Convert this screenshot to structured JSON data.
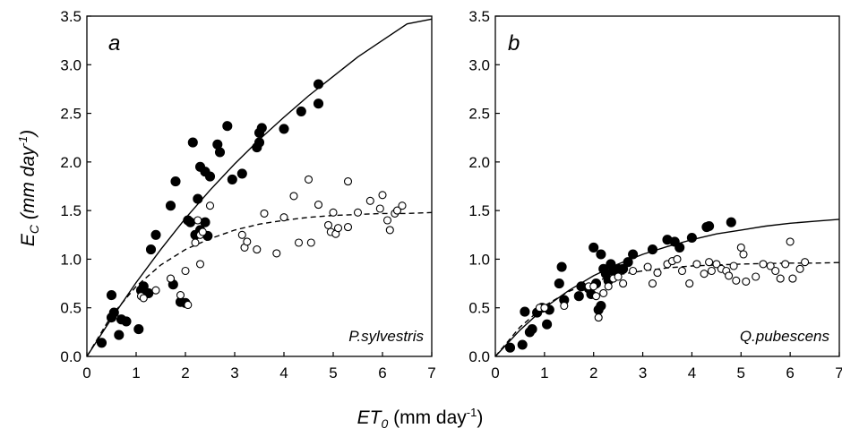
{
  "ylabel": {
    "main": "E",
    "sub": "C",
    "unit_pre": " (mm day",
    "unit_sup": "-1",
    "unit_post": ")"
  },
  "xlabel": {
    "main": "ET",
    "sub": "0",
    "unit_pre": " (mm day",
    "unit_sup": "-1",
    "unit_post": ")"
  },
  "chart_data": [
    {
      "type": "scatter",
      "panel_letter": "a",
      "species": "P.sylvestris",
      "xlim": [
        0,
        7
      ],
      "ylim": [
        0,
        3.5
      ],
      "x_ticks": [
        "0",
        "1",
        "2",
        "3",
        "4",
        "5",
        "6",
        "7"
      ],
      "y_ticks": [
        "0.0",
        "0.5",
        "1.0",
        "1.5",
        "2.0",
        "2.5",
        "3.0",
        "3.5"
      ],
      "series": [
        {
          "marker": "filled-circle",
          "points": [
            [
              0.3,
              0.14
            ],
            [
              0.5,
              0.63
            ],
            [
              0.5,
              0.4
            ],
            [
              0.55,
              0.45
            ],
            [
              0.65,
              0.22
            ],
            [
              0.7,
              0.38
            ],
            [
              0.8,
              0.36
            ],
            [
              1.05,
              0.28
            ],
            [
              1.1,
              0.68
            ],
            [
              1.15,
              0.72
            ],
            [
              1.25,
              0.65
            ],
            [
              1.3,
              1.1
            ],
            [
              1.4,
              1.25
            ],
            [
              1.7,
              1.55
            ],
            [
              1.75,
              0.74
            ],
            [
              1.8,
              1.8
            ],
            [
              1.9,
              0.56
            ],
            [
              2.0,
              0.55
            ],
            [
              2.05,
              1.4
            ],
            [
              2.1,
              1.38
            ],
            [
              2.15,
              2.2
            ],
            [
              2.2,
              1.25
            ],
            [
              2.25,
              1.62
            ],
            [
              2.3,
              1.95
            ],
            [
              2.3,
              1.3
            ],
            [
              2.4,
              1.38
            ],
            [
              2.4,
              1.9
            ],
            [
              2.45,
              1.24
            ],
            [
              2.5,
              1.85
            ],
            [
              2.65,
              2.18
            ],
            [
              2.7,
              2.1
            ],
            [
              2.85,
              2.37
            ],
            [
              2.95,
              1.82
            ],
            [
              3.15,
              1.88
            ],
            [
              3.45,
              2.15
            ],
            [
              3.5,
              2.3
            ],
            [
              3.5,
              2.2
            ],
            [
              3.55,
              2.35
            ],
            [
              4.0,
              2.34
            ],
            [
              4.35,
              2.52
            ],
            [
              4.7,
              2.6
            ],
            [
              4.7,
              2.8
            ]
          ]
        },
        {
          "marker": "open-circle",
          "points": [
            [
              1.1,
              0.62
            ],
            [
              1.15,
              0.6
            ],
            [
              1.4,
              0.68
            ],
            [
              1.7,
              0.8
            ],
            [
              1.9,
              0.63
            ],
            [
              2.0,
              0.88
            ],
            [
              2.05,
              0.53
            ],
            [
              2.2,
              1.17
            ],
            [
              2.25,
              1.4
            ],
            [
              2.3,
              1.25
            ],
            [
              2.3,
              0.95
            ],
            [
              2.5,
              1.55
            ],
            [
              2.35,
              1.28
            ],
            [
              3.15,
              1.25
            ],
            [
              3.2,
              1.12
            ],
            [
              3.25,
              1.18
            ],
            [
              3.45,
              1.1
            ],
            [
              3.6,
              1.47
            ],
            [
              3.85,
              1.06
            ],
            [
              4.0,
              1.43
            ],
            [
              4.2,
              1.65
            ],
            [
              4.3,
              1.17
            ],
            [
              4.5,
              1.82
            ],
            [
              4.55,
              1.17
            ],
            [
              4.7,
              1.56
            ],
            [
              4.9,
              1.35
            ],
            [
              4.95,
              1.28
            ],
            [
              5.0,
              1.48
            ],
            [
              5.05,
              1.26
            ],
            [
              5.1,
              1.32
            ],
            [
              5.3,
              1.8
            ],
            [
              5.3,
              1.33
            ],
            [
              5.5,
              1.48
            ],
            [
              5.75,
              1.6
            ],
            [
              5.95,
              1.52
            ],
            [
              6.0,
              1.66
            ],
            [
              6.1,
              1.4
            ],
            [
              6.15,
              1.3
            ],
            [
              6.25,
              1.47
            ],
            [
              6.3,
              1.5
            ],
            [
              6.4,
              1.55
            ]
          ]
        }
      ],
      "curves": [
        {
          "style": "solid",
          "points": [
            [
              0,
              0
            ],
            [
              0.5,
              0.39
            ],
            [
              1,
              0.76
            ],
            [
              1.5,
              1.1
            ],
            [
              2,
              1.42
            ],
            [
              2.5,
              1.71
            ],
            [
              3,
              1.98
            ],
            [
              3.5,
              2.23
            ],
            [
              4,
              2.46
            ],
            [
              4.5,
              2.68
            ],
            [
              5,
              2.88
            ],
            [
              5.5,
              3.08
            ],
            [
              6,
              3.25
            ],
            [
              6.5,
              3.42
            ],
            [
              7,
              3.47
            ]
          ]
        },
        {
          "style": "dashed",
          "points": [
            [
              0,
              0
            ],
            [
              0.5,
              0.42
            ],
            [
              1,
              0.72
            ],
            [
              1.5,
              0.94
            ],
            [
              2,
              1.1
            ],
            [
              2.5,
              1.21
            ],
            [
              3,
              1.3
            ],
            [
              3.5,
              1.36
            ],
            [
              4,
              1.4
            ],
            [
              4.5,
              1.43
            ],
            [
              5,
              1.45
            ],
            [
              5.5,
              1.46
            ],
            [
              6,
              1.47
            ],
            [
              6.5,
              1.47
            ],
            [
              7,
              1.48
            ]
          ]
        }
      ]
    },
    {
      "type": "scatter",
      "panel_letter": "b",
      "species": "Q.pubescens",
      "xlim": [
        0,
        7
      ],
      "ylim": [
        0,
        3.5
      ],
      "x_ticks": [
        "0",
        "1",
        "2",
        "3",
        "4",
        "5",
        "6",
        "7"
      ],
      "y_ticks": [
        "0.0",
        "0.5",
        "1.0",
        "1.5",
        "2.0",
        "2.5",
        "3.0",
        "3.5"
      ],
      "series": [
        {
          "marker": "filled-circle",
          "points": [
            [
              0.3,
              0.09
            ],
            [
              0.55,
              0.12
            ],
            [
              0.6,
              0.46
            ],
            [
              0.7,
              0.25
            ],
            [
              0.75,
              0.28
            ],
            [
              0.85,
              0.45
            ],
            [
              0.95,
              0.5
            ],
            [
              1.05,
              0.33
            ],
            [
              1.1,
              0.48
            ],
            [
              1.3,
              0.75
            ],
            [
              1.35,
              0.92
            ],
            [
              1.4,
              0.58
            ],
            [
              1.7,
              0.62
            ],
            [
              1.75,
              0.72
            ],
            [
              1.9,
              0.7
            ],
            [
              1.95,
              0.64
            ],
            [
              2.0,
              1.12
            ],
            [
              2.05,
              0.75
            ],
            [
              2.1,
              0.48
            ],
            [
              2.15,
              0.52
            ],
            [
              2.15,
              1.05
            ],
            [
              2.2,
              0.9
            ],
            [
              2.25,
              0.85
            ],
            [
              2.3,
              0.78
            ],
            [
              2.35,
              0.95
            ],
            [
              2.4,
              0.88
            ],
            [
              2.5,
              0.9
            ],
            [
              2.6,
              0.9
            ],
            [
              2.7,
              0.97
            ],
            [
              2.8,
              1.05
            ],
            [
              3.2,
              1.1
            ],
            [
              3.5,
              1.2
            ],
            [
              3.65,
              1.18
            ],
            [
              3.75,
              1.12
            ],
            [
              4.0,
              1.22
            ],
            [
              4.3,
              1.33
            ],
            [
              4.35,
              1.34
            ],
            [
              4.8,
              1.38
            ]
          ]
        },
        {
          "marker": "open-circle",
          "points": [
            [
              0.9,
              0.5
            ],
            [
              1.0,
              0.5
            ],
            [
              1.4,
              0.52
            ],
            [
              1.9,
              0.72
            ],
            [
              2.0,
              0.72
            ],
            [
              2.05,
              0.62
            ],
            [
              2.1,
              0.4
            ],
            [
              2.2,
              0.65
            ],
            [
              2.3,
              0.72
            ],
            [
              2.4,
              0.8
            ],
            [
              2.5,
              0.82
            ],
            [
              2.6,
              0.75
            ],
            [
              2.8,
              0.88
            ],
            [
              3.1,
              0.92
            ],
            [
              3.2,
              0.75
            ],
            [
              3.3,
              0.86
            ],
            [
              3.5,
              0.95
            ],
            [
              3.6,
              0.98
            ],
            [
              3.7,
              1.0
            ],
            [
              3.8,
              0.88
            ],
            [
              3.95,
              0.75
            ],
            [
              4.1,
              0.95
            ],
            [
              4.25,
              0.85
            ],
            [
              4.35,
              0.97
            ],
            [
              4.4,
              0.88
            ],
            [
              4.5,
              0.95
            ],
            [
              4.6,
              0.9
            ],
            [
              4.7,
              0.88
            ],
            [
              4.75,
              0.83
            ],
            [
              4.85,
              0.93
            ],
            [
              4.9,
              0.78
            ],
            [
              5.0,
              1.12
            ],
            [
              5.05,
              1.05
            ],
            [
              5.1,
              0.77
            ],
            [
              5.3,
              0.82
            ],
            [
              5.45,
              0.95
            ],
            [
              5.6,
              0.93
            ],
            [
              5.7,
              0.88
            ],
            [
              5.8,
              0.8
            ],
            [
              5.9,
              0.95
            ],
            [
              6.0,
              1.18
            ],
            [
              6.05,
              0.8
            ],
            [
              6.2,
              0.9
            ],
            [
              6.3,
              0.97
            ]
          ]
        }
      ],
      "curves": [
        {
          "style": "solid",
          "points": [
            [
              0,
              0
            ],
            [
              0.5,
              0.27
            ],
            [
              1,
              0.5
            ],
            [
              1.5,
              0.68
            ],
            [
              2,
              0.83
            ],
            [
              2.5,
              0.95
            ],
            [
              3,
              1.05
            ],
            [
              3.5,
              1.13
            ],
            [
              4,
              1.2
            ],
            [
              4.5,
              1.26
            ],
            [
              5,
              1.3
            ],
            [
              5.5,
              1.34
            ],
            [
              6,
              1.37
            ],
            [
              6.5,
              1.39
            ],
            [
              7,
              1.41
            ]
          ]
        },
        {
          "style": "dashed",
          "points": [
            [
              0,
              0
            ],
            [
              0.5,
              0.3
            ],
            [
              1,
              0.52
            ],
            [
              1.5,
              0.67
            ],
            [
              2,
              0.77
            ],
            [
              2.5,
              0.84
            ],
            [
              3,
              0.88
            ],
            [
              3.5,
              0.91
            ],
            [
              4,
              0.93
            ],
            [
              4.5,
              0.94
            ],
            [
              5,
              0.95
            ],
            [
              5.5,
              0.955
            ],
            [
              6,
              0.96
            ],
            [
              6.5,
              0.96
            ],
            [
              7,
              0.965
            ]
          ]
        }
      ]
    }
  ]
}
